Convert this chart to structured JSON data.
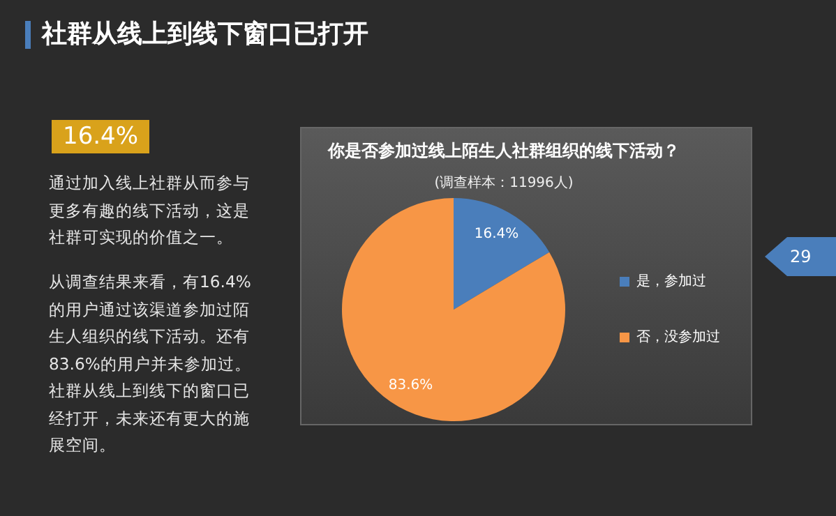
{
  "chart_data": {
    "type": "pie",
    "title": "你是否参加过线上陌生人社群组织的线下活动？",
    "subtitle": "(调查样本：11996人)",
    "categories": [
      "是，参加过",
      "否，没参加过"
    ],
    "values": [
      16.4,
      83.6
    ],
    "colors": [
      "#4a7ebb",
      "#f79646"
    ],
    "value_labels": [
      "16.4%",
      "83.6%"
    ],
    "legend": "right",
    "annotations": [
      "社群从线上到线下窗口已打开",
      "16.4%",
      "通过加入线上社群从而参与更多有趣的线下活动，这是社群可实现的价值之一。",
      "从调查结果来看，有16.4%的用户通过该渠道参加过陌生人组织的线下活动。还有83.6%的用户并未参加过。社群从线上到线下的窗口已经打开，未来还有更大的施展空间。",
      "29"
    ]
  }
}
